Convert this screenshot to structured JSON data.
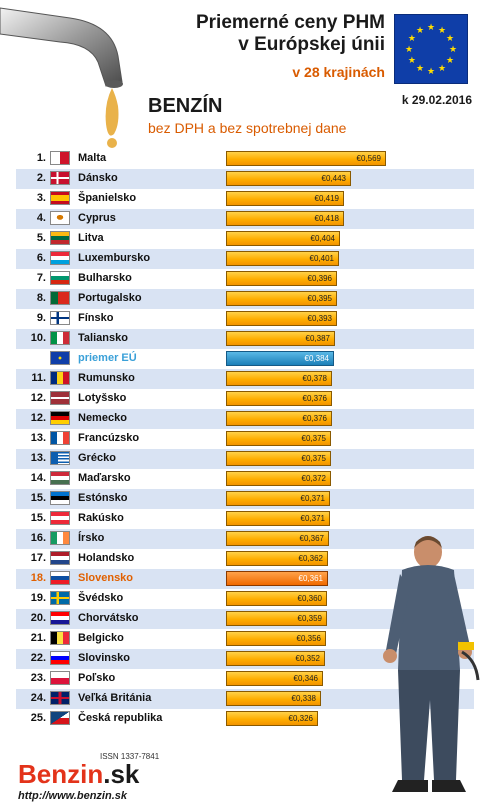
{
  "header": {
    "title_line1": "Priemerné ceny PHM",
    "title_line2": "v Európskej únii",
    "subtitle": "v 28 krajinách",
    "date": "k 29.02.2016",
    "fuel": "BENZÍN",
    "note": "bez DPH a bez spotrebnej dane"
  },
  "footer": {
    "issn": "ISSN 1337-7841",
    "brand_main": "Benzin",
    "brand_suffix": ".sk",
    "url": "http://www.benzin.sk"
  },
  "colors": {
    "bar": "#ffae00",
    "average": "#1b7fb8",
    "highlight": "#f06a00",
    "alt_row": "#d9e3f3"
  },
  "chart_data": {
    "type": "bar",
    "orientation": "horizontal",
    "title": "Priemerné ceny PHM v Európskej únii",
    "subtitle": "v 28 krajinách",
    "unit": "€",
    "categories": [
      "Malta",
      "Dánsko",
      "Španielsko",
      "Cyprus",
      "Litva",
      "Luxembursko",
      "Bulharsko",
      "Portugalsko",
      "Fínsko",
      "Taliansko",
      "priemer EÚ",
      "Rumunsko",
      "Lotyšsko",
      "Nemecko",
      "Francúzsko",
      "Grécko",
      "Maďarsko",
      "Estónsko",
      "Rakúsko",
      "Írsko",
      "Holandsko",
      "Slovensko",
      "Švédsko",
      "Chorvátsko",
      "Belgicko",
      "Slovinsko",
      "Poľsko",
      "Veľká Británia",
      "Česká republika"
    ],
    "values": [
      0.569,
      0.443,
      0.419,
      0.418,
      0.404,
      0.401,
      0.396,
      0.395,
      0.393,
      0.387,
      0.384,
      0.378,
      0.376,
      0.376,
      0.375,
      0.375,
      0.372,
      0.371,
      0.371,
      0.367,
      0.362,
      0.361,
      0.36,
      0.359,
      0.356,
      0.352,
      0.346,
      0.338,
      0.326
    ],
    "rows": [
      {
        "rank": "1.",
        "name": "Malta",
        "value": 0.569,
        "label": "€0,569",
        "flag": "malta"
      },
      {
        "rank": "2.",
        "name": "Dánsko",
        "value": 0.443,
        "label": "€0,443",
        "flag": "denmark"
      },
      {
        "rank": "3.",
        "name": "Španielsko",
        "value": 0.419,
        "label": "€0,419",
        "flag": "spain"
      },
      {
        "rank": "4.",
        "name": "Cyprus",
        "value": 0.418,
        "label": "€0,418",
        "flag": "cyprus"
      },
      {
        "rank": "5.",
        "name": "Litva",
        "value": 0.404,
        "label": "€0,404",
        "flag": "lithuania"
      },
      {
        "rank": "6.",
        "name": "Luxembursko",
        "value": 0.401,
        "label": "€0,401",
        "flag": "luxembourg"
      },
      {
        "rank": "7.",
        "name": "Bulharsko",
        "value": 0.396,
        "label": "€0,396",
        "flag": "bulgaria"
      },
      {
        "rank": "8.",
        "name": "Portugalsko",
        "value": 0.395,
        "label": "€0,395",
        "flag": "portugal"
      },
      {
        "rank": "9.",
        "name": "Fínsko",
        "value": 0.393,
        "label": "€0,393",
        "flag": "finland"
      },
      {
        "rank": "10.",
        "name": "Taliansko",
        "value": 0.387,
        "label": "€0,387",
        "flag": "italy"
      },
      {
        "rank": "",
        "name": "priemer EÚ",
        "value": 0.384,
        "label": "€0,384",
        "flag": "eu",
        "kind": "average"
      },
      {
        "rank": "11.",
        "name": "Rumunsko",
        "value": 0.378,
        "label": "€0,378",
        "flag": "romania"
      },
      {
        "rank": "12.",
        "name": "Lotyšsko",
        "value": 0.376,
        "label": "€0,376",
        "flag": "latvia"
      },
      {
        "rank": "12.",
        "name": "Nemecko",
        "value": 0.376,
        "label": "€0,376",
        "flag": "germany"
      },
      {
        "rank": "13.",
        "name": "Francúzsko",
        "value": 0.375,
        "label": "€0,375",
        "flag": "france"
      },
      {
        "rank": "13.",
        "name": "Grécko",
        "value": 0.375,
        "label": "€0,375",
        "flag": "greece"
      },
      {
        "rank": "14.",
        "name": "Maďarsko",
        "value": 0.372,
        "label": "€0,372",
        "flag": "hungary"
      },
      {
        "rank": "15.",
        "name": "Estónsko",
        "value": 0.371,
        "label": "€0,371",
        "flag": "estonia"
      },
      {
        "rank": "15.",
        "name": "Rakúsko",
        "value": 0.371,
        "label": "€0,371",
        "flag": "austria"
      },
      {
        "rank": "16.",
        "name": "Írsko",
        "value": 0.367,
        "label": "€0,367",
        "flag": "ireland"
      },
      {
        "rank": "17.",
        "name": "Holandsko",
        "value": 0.362,
        "label": "€0,362",
        "flag": "netherlands"
      },
      {
        "rank": "18.",
        "name": "Slovensko",
        "value": 0.361,
        "label": "€0,361",
        "flag": "slovakia",
        "kind": "highlight"
      },
      {
        "rank": "19.",
        "name": "Švédsko",
        "value": 0.36,
        "label": "€0,360",
        "flag": "sweden"
      },
      {
        "rank": "20.",
        "name": "Chorvátsko",
        "value": 0.359,
        "label": "€0,359",
        "flag": "croatia"
      },
      {
        "rank": "21.",
        "name": "Belgicko",
        "value": 0.356,
        "label": "€0,356",
        "flag": "belgium"
      },
      {
        "rank": "22.",
        "name": "Slovinsko",
        "value": 0.352,
        "label": "€0,352",
        "flag": "slovenia"
      },
      {
        "rank": "23.",
        "name": "Poľsko",
        "value": 0.346,
        "label": "€0,346",
        "flag": "poland"
      },
      {
        "rank": "24.",
        "name": "Veľká Británia",
        "value": 0.338,
        "label": "€0,338",
        "flag": "uk"
      },
      {
        "rank": "25.",
        "name": "Česká republika",
        "value": 0.326,
        "label": "€0,326",
        "flag": "czech"
      }
    ]
  }
}
